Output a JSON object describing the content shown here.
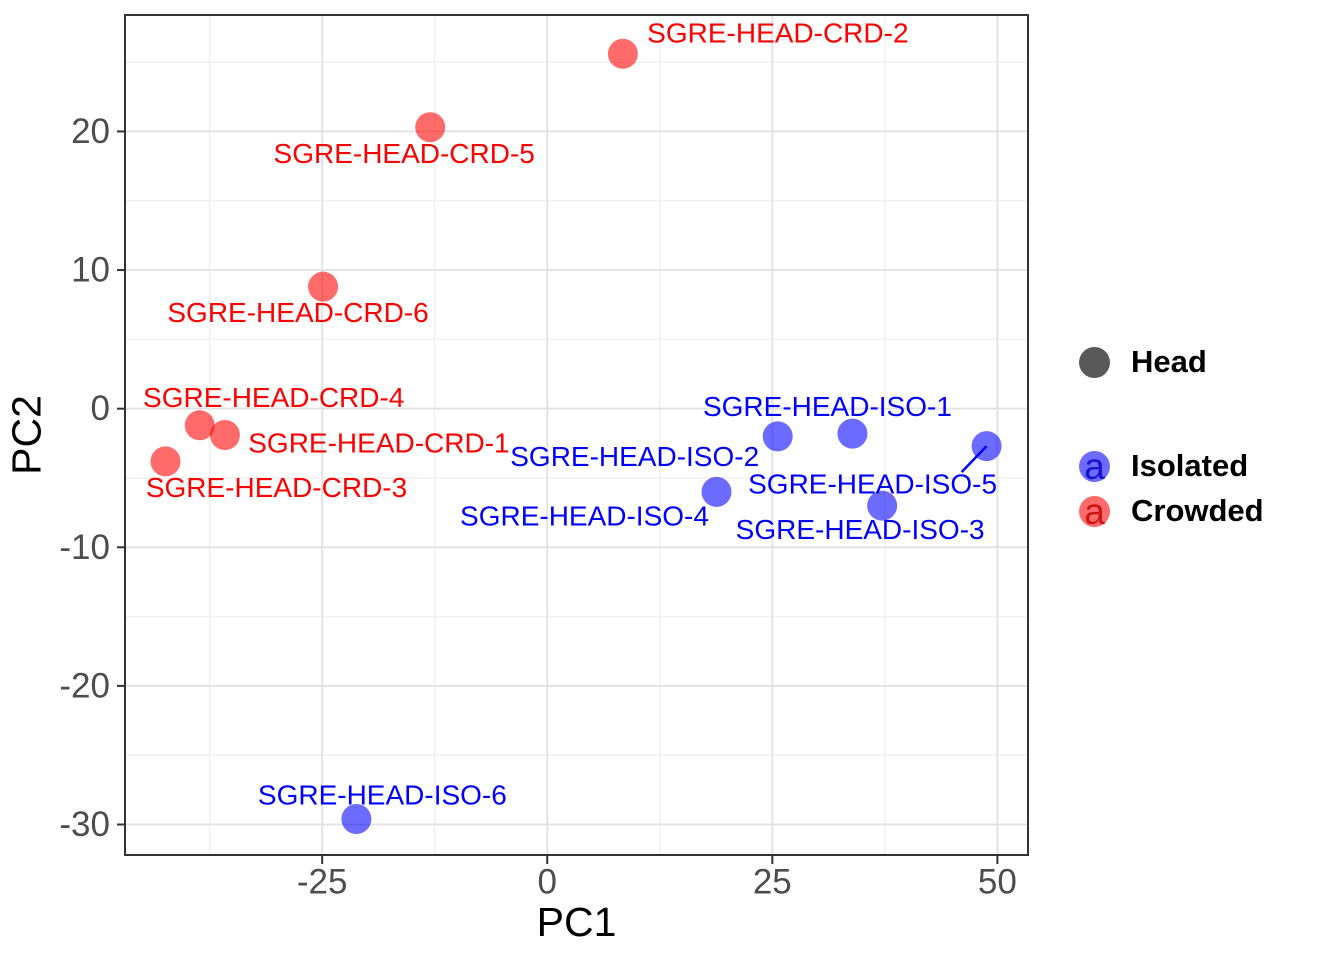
{
  "chart_data": {
    "type": "scatter",
    "title": "",
    "xlabel": "PC1",
    "ylabel": "PC2",
    "xlim": [
      -46.9,
      53.4
    ],
    "ylim": [
      -32.2,
      28.4
    ],
    "x_ticks": [
      -25,
      0,
      25,
      50
    ],
    "y_ticks": [
      -30,
      -20,
      -10,
      0,
      10,
      20
    ],
    "x_minor_ticks": [
      -37.5,
      -12.5,
      12.5,
      37.5
    ],
    "y_minor_ticks": [
      -25,
      -15,
      -5,
      5,
      15,
      25
    ],
    "grid": true,
    "colors": {
      "background": "#FFFFFF",
      "grid_major": "#E3E3E3",
      "grid_minor": "#F0F0F0",
      "panel_border": "#333333",
      "tick_mark": "#333333",
      "tick_label": "#4D4D4D",
      "axis_title": "#000000",
      "crowded_point": "rgba(255,0,0,0.58)",
      "crowded_label": "#FF0000",
      "isolated_point": "rgba(0,0,255,0.58)",
      "isolated_label": "#0000FF",
      "head_key": "#595959"
    },
    "series": [
      {
        "name": "Crowded",
        "point_color": "rgba(255,0,0,0.58)",
        "label_color": "#FF0000",
        "points": [
          {
            "label": "SGRE-HEAD-CRD-2",
            "x": 8.4,
            "y": 25.6,
            "label_dx": 155,
            "label_dy": -21
          },
          {
            "label": "SGRE-HEAD-CRD-5",
            "x": -13.0,
            "y": 20.3,
            "label_dx": -26,
            "label_dy": 26
          },
          {
            "label": "SGRE-HEAD-CRD-6",
            "x": -24.9,
            "y": 8.8,
            "label_dx": -25,
            "label_dy": 26
          },
          {
            "label": "SGRE-HEAD-CRD-4",
            "x": -38.6,
            "y": -1.2,
            "label_dx": 74,
            "label_dy": -28
          },
          {
            "label": "SGRE-HEAD-CRD-1",
            "x": -35.8,
            "y": -1.9,
            "label_dx": 154,
            "label_dy": 8
          },
          {
            "label": "SGRE-HEAD-CRD-3",
            "x": -42.4,
            "y": -3.8,
            "label_dx": 111,
            "label_dy": 26
          }
        ]
      },
      {
        "name": "Isolated",
        "point_color": "rgba(0,0,255,0.58)",
        "label_color": "#0000FF",
        "points": [
          {
            "label": "SGRE-HEAD-ISO-1",
            "x": 33.9,
            "y": -1.8,
            "label_dx": -25,
            "label_dy": -27
          },
          {
            "label": "SGRE-HEAD-ISO-2",
            "x": 25.6,
            "y": -2.0,
            "label_dx": -143,
            "label_dy": 20
          },
          {
            "label": "SGRE-HEAD-ISO-5",
            "x": 48.8,
            "y": -2.7,
            "label_dx": -114,
            "label_dy": 38,
            "leader_dx": -25,
            "leader_dy": 26
          },
          {
            "label": "SGRE-HEAD-ISO-4",
            "x": 18.8,
            "y": -6.0,
            "label_dx": -132,
            "label_dy": 24
          },
          {
            "label": "SGRE-HEAD-ISO-3",
            "x": 37.2,
            "y": -7.0,
            "label_dx": -22,
            "label_dy": 24
          },
          {
            "label": "SGRE-HEAD-ISO-6",
            "x": -21.2,
            "y": -29.6,
            "label_dx": 26,
            "label_dy": -24
          }
        ]
      }
    ],
    "legend": {
      "position": "right",
      "shape": {
        "label": "Head",
        "color": "#595959"
      },
      "color_items": [
        {
          "label": "Isolated",
          "glyph": "a",
          "fill": "rgba(0,0,255,0.58)",
          "glyph_color": "#1414CC"
        },
        {
          "label": "Crowded",
          "glyph": "a",
          "fill": "rgba(255,0,0,0.58)",
          "glyph_color": "#CC1414"
        }
      ]
    }
  }
}
